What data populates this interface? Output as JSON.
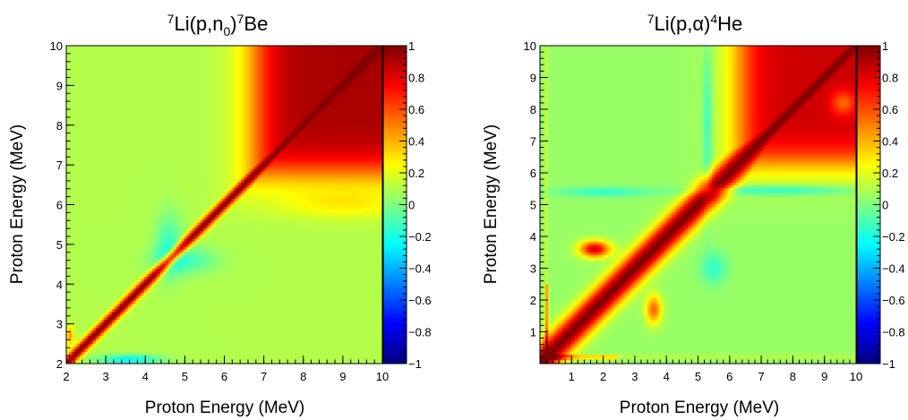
{
  "chart_data": [
    {
      "type": "heatmap",
      "title": {
        "sup1": "7",
        "base1": "Li(p,n",
        "sub": "0",
        "close": ")",
        "sup2": "7",
        "tail": "Be"
      },
      "xlabel": "Proton Energy (MeV)",
      "ylabel": "Proton Energy (MeV)",
      "xlim": [
        2,
        10
      ],
      "ylim": [
        2,
        10
      ],
      "x_ticks": [
        2,
        3,
        4,
        5,
        6,
        7,
        8,
        9,
        10
      ],
      "y_ticks": [
        2,
        3,
        4,
        5,
        6,
        7,
        8,
        9,
        10
      ],
      "zlim": [
        -1,
        1
      ],
      "colorbar_ticks": [
        "1",
        "0.8",
        "0.6",
        "0.4",
        "0.2",
        "0",
        "−0.2",
        "−0.4",
        "−0.6",
        "−0.8",
        "−1"
      ],
      "colorbar_values": [
        1,
        0.8,
        0.6,
        0.4,
        0.2,
        0,
        -0.2,
        -0.4,
        -0.6,
        -0.8,
        -1
      ],
      "colormap": "jet",
      "features": [
        {
          "region": "diagonal band (x ≈ y)",
          "correlation": 1.0
        },
        {
          "region": "high-energy block x,y ≥ 7",
          "correlation": 0.9
        },
        {
          "region": "background",
          "correlation": 0.1
        },
        {
          "region": "near x,y ≈ 4.5–5",
          "correlation": -0.1
        },
        {
          "region": "x ≈ 3–4, y ≈ 2.1",
          "correlation": -0.25
        },
        {
          "region": "x ≈ 2–2.2, y ≈ 2.4–2.8",
          "correlation": 0.5
        }
      ]
    },
    {
      "type": "heatmap",
      "title": {
        "sup1": "7",
        "base1": "Li(p,",
        "greek": "α",
        "close": ")",
        "sup2": "4",
        "tail": "He"
      },
      "xlabel": "Proton Energy (MeV)",
      "ylabel": "Proton Energy (MeV)",
      "xlim": [
        0,
        10
      ],
      "ylim": [
        0,
        10
      ],
      "x_ticks": [
        1,
        2,
        3,
        4,
        5,
        6,
        7,
        8,
        9,
        10
      ],
      "y_ticks": [
        1,
        2,
        3,
        4,
        5,
        6,
        7,
        8,
        9,
        10
      ],
      "zlim": [
        -1,
        1
      ],
      "colorbar_ticks": [
        "1",
        "0.8",
        "0.6",
        "0.4",
        "0.2",
        "0",
        "−0.2",
        "−0.4",
        "−0.6",
        "−0.8",
        "−1"
      ],
      "colorbar_values": [
        1,
        0.8,
        0.6,
        0.4,
        0.2,
        0,
        -0.2,
        -0.4,
        -0.6,
        -0.8,
        -1
      ],
      "colormap": "jet",
      "features": [
        {
          "region": "diagonal band (x ≈ y)",
          "correlation": 1.0
        },
        {
          "region": "upper-right block x,y ≥ 6",
          "correlation": 0.85
        },
        {
          "region": "background",
          "correlation": 0.05
        },
        {
          "region": "band near y ≈ 5.3–5.6 and x ≈ 5.3",
          "correlation": -0.15
        },
        {
          "region": "x ≈ 3.6, y ≈ 1.7",
          "correlation": 0.6
        },
        {
          "region": "x,y ≈ 0.2 corner lines",
          "correlation": 0.4
        }
      ]
    }
  ]
}
